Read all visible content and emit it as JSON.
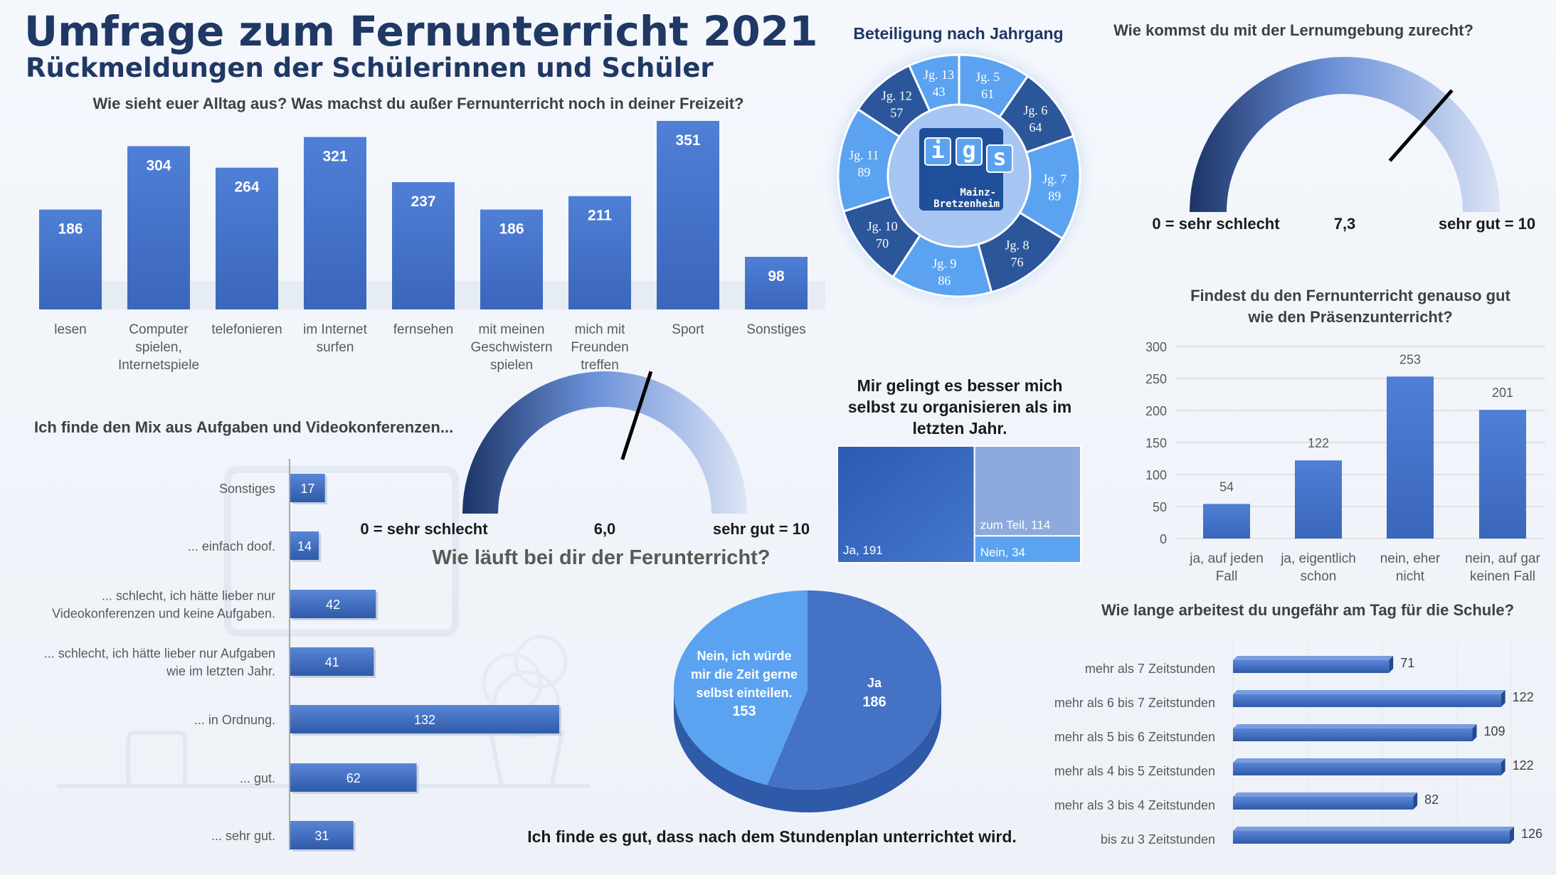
{
  "header": {
    "title": "Umfrage zum Fernunterricht 2021",
    "subtitle": "Rückmeldungen der Schülerinnen und Schüler"
  },
  "logo": {
    "letters": [
      "i",
      "g",
      "s"
    ],
    "school": "Mainz-Bretzenheim"
  },
  "colors": {
    "dark_blue": "#1f3864",
    "bar_blue": "#4472c4",
    "light_blue": "#5ba3f0",
    "mid_blue": "#2e5aa8",
    "background": "#f4f7fc"
  },
  "chart_data": [
    {
      "id": "freizeit",
      "type": "bar",
      "title": "Wie sieht euer Alltag aus? Was machst du außer Fernunterricht noch in deiner Freizeit?",
      "categories": [
        "lesen",
        "Computer spielen, Internetspiele",
        "telefonieren",
        "im Internet surfen",
        "fernsehen",
        "mit meinen Geschwistern spielen",
        "mich mit Freunden treffen",
        "Sport",
        "Sonstiges"
      ],
      "category_lines": [
        [
          "lesen"
        ],
        [
          "Computer",
          "spielen,",
          "Internetspiele"
        ],
        [
          "telefonieren"
        ],
        [
          "im Internet",
          "surfen"
        ],
        [
          "fernsehen"
        ],
        [
          "mit meinen",
          "Geschwistern",
          "spielen"
        ],
        [
          "mich mit",
          "Freunden",
          "treffen"
        ],
        [
          "Sport"
        ],
        [
          "Sonstiges"
        ]
      ],
      "values": [
        186,
        304,
        264,
        321,
        237,
        186,
        211,
        351,
        98
      ],
      "ylim": [
        0,
        380
      ]
    },
    {
      "id": "jahrgang",
      "type": "pie",
      "title": "Beteiligung nach Jahrgang",
      "labels": [
        "Jg. 5",
        "Jg. 6",
        "Jg. 7",
        "Jg. 8",
        "Jg. 9",
        "Jg. 10",
        "Jg. 11",
        "Jg. 12",
        "Jg. 13"
      ],
      "values": [
        61,
        64,
        89,
        76,
        86,
        70,
        89,
        57,
        43
      ]
    },
    {
      "id": "lernumgebung",
      "type": "gauge",
      "title": "Wie kommst du mit der Lernumgebung zurecht?",
      "value": 7.3,
      "value_label": "7,3",
      "min_label": "0 = sehr schlecht",
      "max_label": "sehr gut = 10",
      "range": [
        0,
        10
      ]
    },
    {
      "id": "fernunterricht_laeuft",
      "type": "gauge",
      "title": "Wie läuft bei dir der Ferunterricht?",
      "value": 6.0,
      "value_label": "6,0",
      "min_label": "0 = sehr schlecht",
      "max_label": "sehr gut = 10",
      "range": [
        0,
        10
      ]
    },
    {
      "id": "mix",
      "type": "bar",
      "orientation": "horizontal",
      "title": "Ich finde den Mix aus Aufgaben und Videokonferenzen...",
      "categories": [
        "Sonstiges",
        "... einfach doof.",
        "... schlecht, ich hätte lieber nur Videokonferenzen und keine Aufgaben.",
        "... schlecht, ich hätte lieber nur Aufgaben wie im letzten Jahr.",
        "... in Ordnung.",
        "... gut.",
        "... sehr gut."
      ],
      "category_lines": [
        [
          "Sonstiges"
        ],
        [
          "... einfach doof."
        ],
        [
          "... schlecht, ich hätte lieber nur",
          "Videokonferenzen und keine Aufgaben."
        ],
        [
          "... schlecht, ich hätte lieber nur Aufgaben",
          "wie im letzten Jahr."
        ],
        [
          "... in Ordnung."
        ],
        [
          "... gut."
        ],
        [
          "... sehr gut."
        ]
      ],
      "values": [
        17,
        14,
        42,
        41,
        132,
        62,
        31
      ],
      "xlim": [
        0,
        140
      ]
    },
    {
      "id": "selbstorganisation",
      "type": "treemap",
      "title": "Mir gelingt es besser mich selbst zu organisieren als im letzten Jahr.",
      "title_lines": [
        "Mir gelingt es besser mich",
        "selbst zu organisieren als im",
        "letzten Jahr."
      ],
      "labels": [
        "Ja",
        "zum Teil",
        "Nein"
      ],
      "values": [
        191,
        114,
        34
      ]
    },
    {
      "id": "praesenz",
      "type": "bar",
      "title": "Findest du den Fernunterricht genauso gut wie den Präsenzunterricht?",
      "title_lines": [
        "Findest du den Fernunterricht genauso gut",
        "wie den Präsenzunterricht?"
      ],
      "categories": [
        "ja, auf jeden Fall",
        "ja, eigentlich schon",
        "nein, eher nicht",
        "nein, auf gar keinen Fall"
      ],
      "category_lines": [
        [
          "ja, auf jeden",
          "Fall"
        ],
        [
          "ja, eigentlich",
          "schon"
        ],
        [
          "nein, eher",
          "nicht"
        ],
        [
          "nein, auf gar",
          "keinen Fall"
        ]
      ],
      "values": [
        54,
        122,
        253,
        201
      ],
      "yticks": [
        0,
        50,
        100,
        150,
        200,
        250,
        300
      ],
      "ylim": [
        0,
        300
      ],
      "grid": true
    },
    {
      "id": "stundenplan",
      "type": "pie",
      "title": "Ich finde es gut, dass nach dem Stundenplan unterrichtet wird.",
      "labels": [
        "Ja",
        "Nein, ich würde mir die Zeit gerne selbst einteilen."
      ],
      "label_lines": [
        [
          "Ja"
        ],
        [
          "Nein, ich würde",
          "mir die Zeit gerne",
          "selbst einteilen."
        ]
      ],
      "values": [
        186,
        153
      ]
    },
    {
      "id": "arbeitszeit",
      "type": "bar",
      "orientation": "horizontal",
      "title": "Wie lange arbeitest du ungefähr am Tag für die Schule?",
      "categories": [
        "mehr als 7 Zeitstunden",
        "mehr als 6 bis 7 Zeitstunden",
        "mehr als 5 bis 6 Zeitstunden",
        "mehr als 4 bis 5 Zeitstunden",
        "mehr als 3 bis 4 Zeitstunden",
        "bis zu 3 Zeitstunden"
      ],
      "values": [
        71,
        122,
        109,
        122,
        82,
        126
      ],
      "xlim": [
        0,
        130
      ]
    }
  ]
}
